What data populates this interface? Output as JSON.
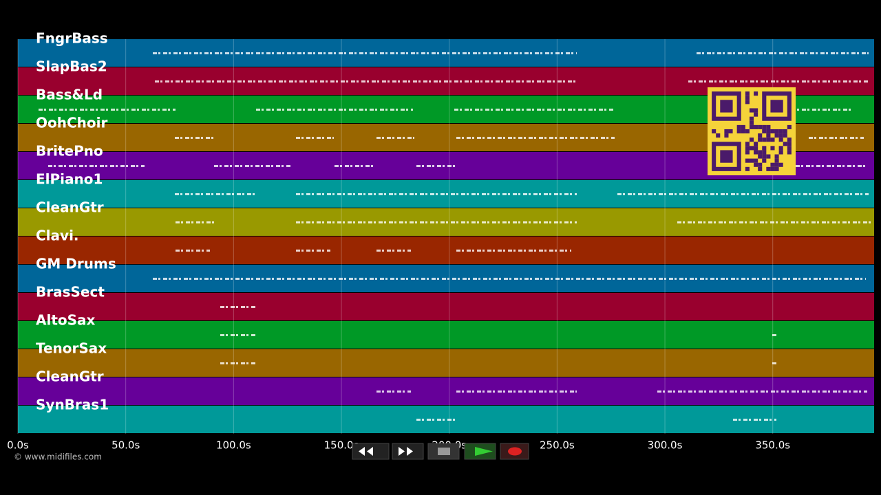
{
  "tracks": [
    {
      "name": "FngrBass",
      "color": "#006699"
    },
    {
      "name": "SlapBas2",
      "color": "#99002e"
    },
    {
      "name": "Bass&Ld",
      "color": "#009926"
    },
    {
      "name": "OohChoir",
      "color": "#996600"
    },
    {
      "name": "BritePno",
      "color": "#660099"
    },
    {
      "name": "ElPiano1",
      "color": "#009999"
    },
    {
      "name": "CleanGtr",
      "color": "#999900"
    },
    {
      "name": "Clavi.",
      "color": "#992600"
    },
    {
      "name": "GM Drums",
      "color": "#006699"
    },
    {
      "name": "BrasSect",
      "color": "#99002e"
    },
    {
      "name": "AltoSax",
      "color": "#009926"
    },
    {
      "name": "TenorSax",
      "color": "#996600"
    },
    {
      "name": "CleanGtr",
      "color": "#660099"
    },
    {
      "name": "SynBras1",
      "color": "#009999"
    }
  ],
  "timeline": {
    "range": [
      0,
      397
    ],
    "ticks": [
      {
        "value": 0,
        "label": "0.0s"
      },
      {
        "value": 50,
        "label": "50.0s"
      },
      {
        "value": 100,
        "label": "100.0s"
      },
      {
        "value": 150,
        "label": "150.0s"
      },
      {
        "value": 200,
        "label": "200.0s"
      },
      {
        "value": 250,
        "label": "250.0s"
      },
      {
        "value": 300,
        "label": "300.0s"
      },
      {
        "value": 350,
        "label": "350.0s"
      }
    ]
  },
  "footer": {
    "copyright": "© www.midifiles.com"
  }
}
